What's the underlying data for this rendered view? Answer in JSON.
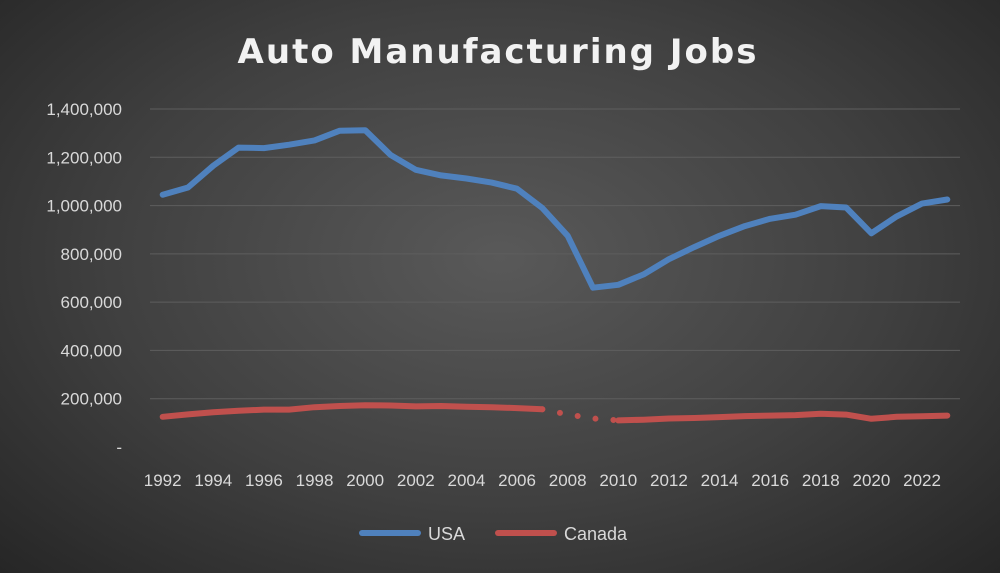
{
  "chart_data": {
    "type": "line",
    "title": "Auto Manufacturing Jobs",
    "xlabel": "",
    "ylabel": "",
    "ylim": [
      0,
      1400000
    ],
    "y_ticks": [
      0,
      200000,
      400000,
      600000,
      800000,
      1000000,
      1200000,
      1400000
    ],
    "y_tick_labels": [
      "-",
      "200,000",
      "400,000",
      "600,000",
      "800,000",
      "1,000,000",
      "1,200,000",
      "1,400,000"
    ],
    "x": [
      1992,
      1993,
      1994,
      1995,
      1996,
      1997,
      1998,
      1999,
      2000,
      2001,
      2002,
      2003,
      2004,
      2005,
      2006,
      2007,
      2008,
      2009,
      2010,
      2011,
      2012,
      2013,
      2014,
      2015,
      2016,
      2017,
      2018,
      2019,
      2020,
      2021,
      2022,
      2023
    ],
    "x_tick_labels": [
      "1992",
      "1994",
      "1996",
      "1998",
      "2000",
      "2002",
      "2004",
      "2006",
      "2008",
      "2010",
      "2012",
      "2014",
      "2016",
      "2018",
      "2020",
      "2022"
    ],
    "grid": true,
    "legend_position": "bottom",
    "series": [
      {
        "name": "USA",
        "color": "#4f81bd",
        "values": [
          1045000,
          1075000,
          1165000,
          1240000,
          1238000,
          1252000,
          1270000,
          1310000,
          1312000,
          1210000,
          1148000,
          1125000,
          1112000,
          1095000,
          1070000,
          990000,
          875000,
          660000,
          672000,
          715000,
          778000,
          828000,
          875000,
          915000,
          945000,
          962000,
          998000,
          992000,
          885000,
          955000,
          1008000,
          1025000
        ]
      },
      {
        "name": "Canada",
        "color": "#c0504d",
        "values": [
          125000,
          135000,
          144000,
          150000,
          155000,
          155000,
          165000,
          170000,
          173000,
          172000,
          168000,
          170000,
          167000,
          165000,
          161000,
          156000,
          135000,
          118000,
          110000,
          113000,
          118000,
          120000,
          124000,
          128000,
          130000,
          132000,
          138000,
          134000,
          117000,
          125000,
          127000,
          130000
        ],
        "dotted_segments": [
          [
            2007,
            2010
          ]
        ]
      }
    ]
  }
}
